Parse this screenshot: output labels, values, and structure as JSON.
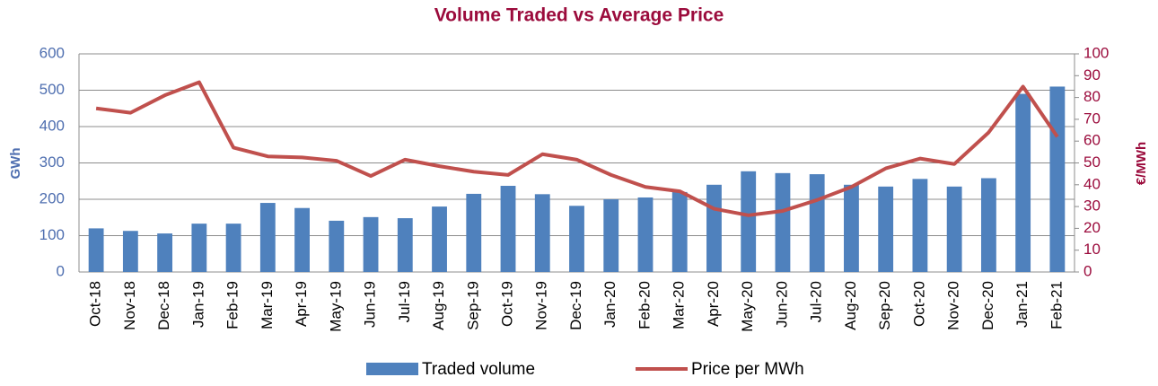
{
  "chart_data": {
    "type": "bar_line",
    "title": "Volume Traded vs Average Price",
    "y_label": "GWh",
    "y2_label": "€/MWh",
    "categories": [
      "Oct-18",
      "Nov-18",
      "Dec-18",
      "Jan-19",
      "Feb-19",
      "Mar-19",
      "Apr-19",
      "May-19",
      "Jun-19",
      "Jul-19",
      "Aug-19",
      "Sep-19",
      "Oct-19",
      "Nov-19",
      "Dec-19",
      "Jan-20",
      "Feb-20",
      "Mar-20",
      "Apr-20",
      "May-20",
      "Jun-20",
      "Jul-20",
      "Aug-20",
      "Sep-20",
      "Oct-20",
      "Nov-20",
      "Dec-20",
      "Jan-21",
      "Feb-21"
    ],
    "series": [
      {
        "name": "Traded volume",
        "type": "bar",
        "axis": "y",
        "color": "#4f81bd",
        "values": [
          120,
          113,
          106,
          133,
          133,
          190,
          176,
          141,
          151,
          148,
          180,
          215,
          237,
          214,
          182,
          200,
          205,
          220,
          240,
          277,
          272,
          269,
          240,
          235,
          256,
          235,
          258,
          490,
          510
        ]
      },
      {
        "name": "Price per MWh",
        "type": "line",
        "axis": "y2",
        "color": "#c0504d",
        "values": [
          75,
          73,
          81,
          87,
          57,
          53,
          52.5,
          51,
          44,
          51.5,
          48.5,
          46,
          44.5,
          54,
          51.5,
          44.5,
          39,
          37,
          29,
          26,
          28,
          33,
          39,
          47.5,
          52,
          49.5,
          64,
          85,
          62
        ]
      }
    ],
    "ylim": [
      0,
      600
    ],
    "yticks": [
      0,
      100,
      200,
      300,
      400,
      500,
      600
    ],
    "y2lim": [
      0,
      100
    ],
    "y2ticks": [
      0,
      10,
      20,
      30,
      40,
      50,
      60,
      70,
      80,
      90,
      100
    ],
    "grid": true,
    "legend": "bottom"
  }
}
